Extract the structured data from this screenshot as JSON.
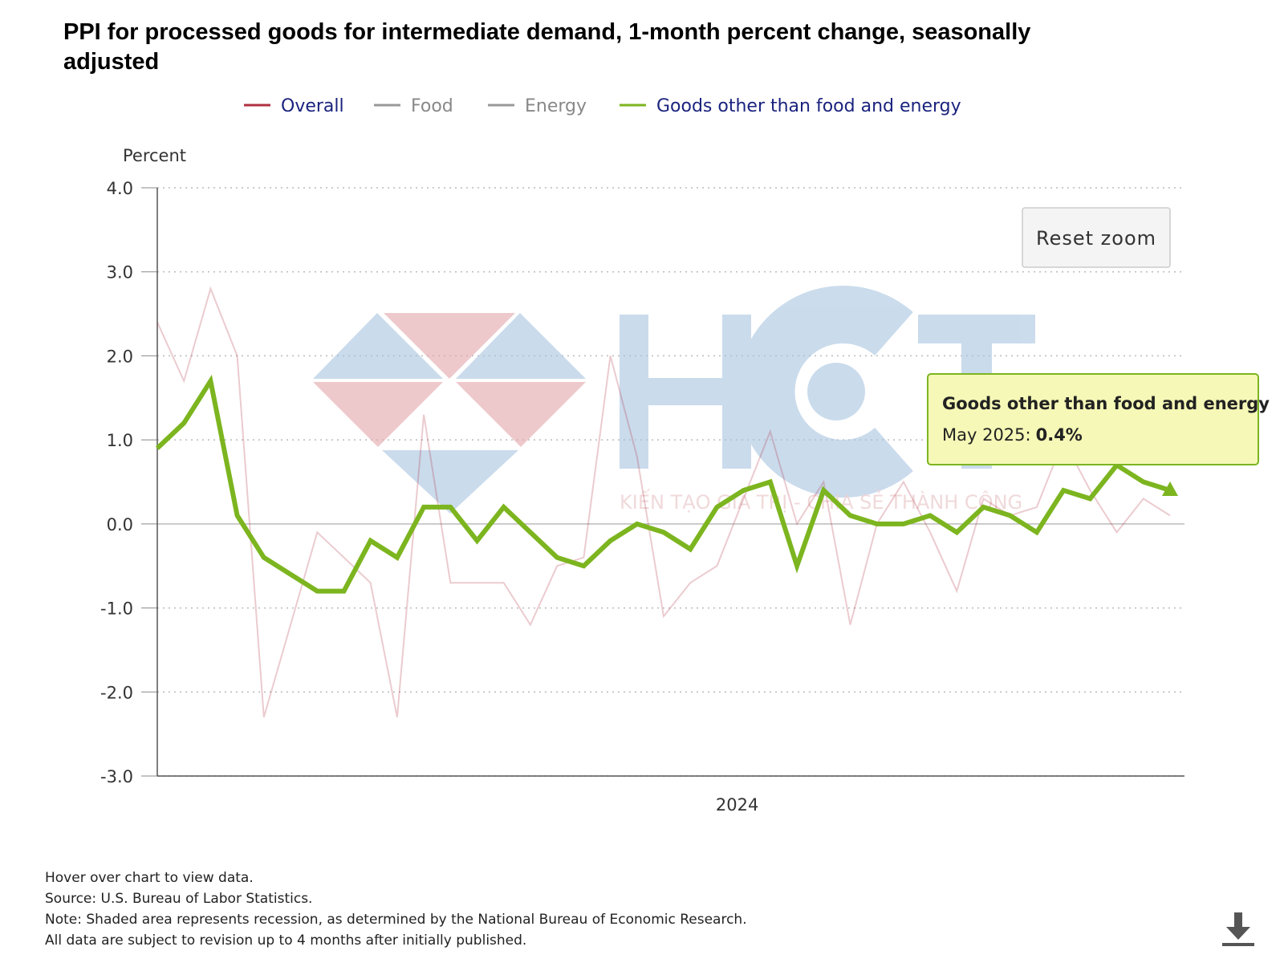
{
  "chart": {
    "title": "PPI for processed goods for intermediate demand, 1-month percent change, seasonally adjusted",
    "legend": [
      {
        "name": "Overall",
        "color": "#b03040",
        "text_color": "#1a237e"
      },
      {
        "name": "Food",
        "color": "#999999",
        "text_color": "#888888"
      },
      {
        "name": "Energy",
        "color": "#999999",
        "text_color": "#888888"
      },
      {
        "name": "Goods other than food and energy",
        "color": "#7cb51f",
        "text_color": "#1a237e"
      }
    ],
    "y_axis_title": "Percent",
    "reset_zoom_label": "Reset zoom",
    "tooltip": {
      "series": "Goods other than food and energy",
      "label": "May 2025:",
      "value": "0.4%"
    }
  },
  "watermark": {
    "letters": "HCT",
    "tagline": "KIẾN TẠO GIÁ TRỊ - CHIA SẺ THÀNH CÔNG"
  },
  "notes": {
    "hover": "Hover over chart to view data.",
    "source": "Source: U.S. Bureau of Labor Statistics.",
    "note": "Note: Shaded area represents recession, as determined by the National Bureau of Economic Research.",
    "revision": "All data are subject to revision up to 4 months after initially published."
  },
  "chart_data": {
    "type": "line",
    "title": "PPI for processed goods for intermediate demand, 1-month percent change, seasonally adjusted",
    "ylabel": "Percent",
    "ylim": [
      -3.0,
      4.0
    ],
    "yticks": [
      "4.0",
      "3.0",
      "2.0",
      "1.0",
      "0.0",
      "-1.0",
      "-2.0",
      "-3.0"
    ],
    "x_tick_labels": [
      "2024"
    ],
    "x_tick_index": 22,
    "grid": "dotted horizontal",
    "legend_position": "top-center",
    "series": [
      {
        "name": "Overall",
        "color": "#b03040",
        "values": [
          2.4,
          1.7,
          2.8,
          2.0,
          -2.3,
          -1.2,
          -0.1,
          -0.4,
          -0.7,
          -2.3,
          1.3,
          -0.7,
          -0.7,
          -0.7,
          -1.2,
          -0.5,
          -0.4,
          2.0,
          0.8,
          -1.1,
          -0.7,
          -0.5,
          0.3,
          1.1,
          0.0,
          0.5,
          -1.2,
          0.0,
          0.5,
          -0.1,
          -0.8,
          0.3,
          0.1,
          0.2,
          1.0,
          0.4,
          -0.1,
          0.3,
          0.1
        ]
      },
      {
        "name": "Goods other than food and energy",
        "color": "#7cb51f",
        "values": [
          0.9,
          1.2,
          1.7,
          0.1,
          -0.4,
          -0.6,
          -0.8,
          -0.8,
          -0.2,
          -0.4,
          0.2,
          0.2,
          -0.2,
          0.2,
          -0.1,
          -0.4,
          -0.5,
          -0.2,
          0.0,
          -0.1,
          -0.3,
          0.2,
          0.4,
          0.5,
          -0.5,
          0.4,
          0.1,
          0.0,
          0.0,
          0.1,
          -0.1,
          0.2,
          0.1,
          -0.1,
          0.4,
          0.3,
          0.7,
          0.5,
          0.4
        ]
      }
    ]
  }
}
